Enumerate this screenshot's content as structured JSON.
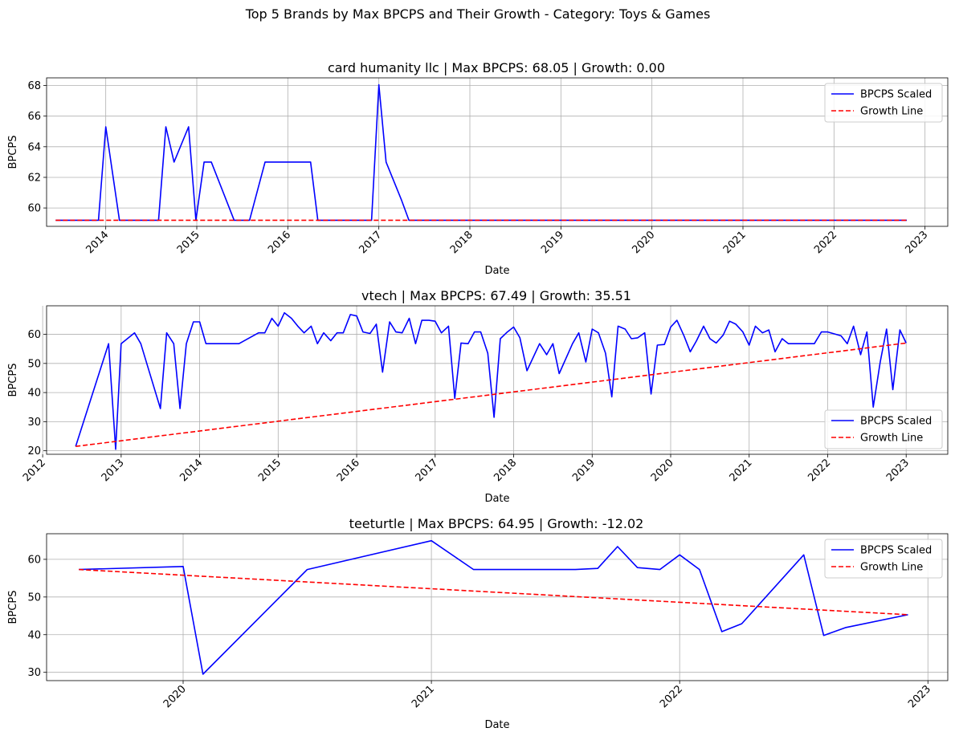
{
  "figure": {
    "title": "Top 5 Brands by Max BPCPS and Their Growth - Category: Toys & Games"
  },
  "colors": {
    "bpcps": "#0000ff",
    "growth": "#ff0000",
    "grid": "#b0b0b0"
  },
  "chart_data": [
    {
      "type": "line",
      "title": "card humanity llc | Max BPCPS: 68.05 | Growth: 0.00",
      "xlabel": "Date",
      "ylabel": "BPCPS",
      "xlim": [
        2013.35,
        2023.25
      ],
      "ylim": [
        58.8,
        68.5
      ],
      "xticks": [
        2014,
        2015,
        2016,
        2017,
        2018,
        2019,
        2020,
        2021,
        2022,
        2023
      ],
      "xtick_labels": [
        "2014",
        "2015",
        "2016",
        "2017",
        "2018",
        "2019",
        "2020",
        "2021",
        "2022",
        "2023"
      ],
      "yticks": [
        60,
        62,
        64,
        66,
        68
      ],
      "ytick_labels": [
        "60",
        "62",
        "64",
        "66",
        "68"
      ],
      "legend": "top-right",
      "series": [
        {
          "name": "BPCPS Scaled",
          "style": "solid",
          "x": [
            2013.45,
            2013.92,
            2014.0,
            2014.15,
            2014.58,
            2014.66,
            2014.75,
            2014.91,
            2014.99,
            2015.08,
            2015.16,
            2015.41,
            2015.58,
            2015.75,
            2016.25,
            2016.33,
            2016.92,
            2017.0,
            2017.08,
            2017.25,
            2017.33,
            2022.8
          ],
          "y": [
            59.2,
            59.2,
            65.3,
            59.2,
            59.2,
            65.3,
            63.0,
            65.3,
            59.2,
            63.0,
            63.0,
            59.2,
            59.2,
            63.0,
            63.0,
            59.2,
            59.2,
            68.05,
            63.0,
            60.5,
            59.2,
            59.2
          ]
        },
        {
          "name": "Growth Line",
          "style": "dashed",
          "x": [
            2013.45,
            2022.8
          ],
          "y": [
            59.2,
            59.2
          ]
        }
      ]
    },
    {
      "type": "line",
      "title": "vtech | Max BPCPS: 67.49 | Growth: 35.51",
      "xlabel": "Date",
      "ylabel": "BPCPS",
      "xlim": [
        2012.05,
        2023.53
      ],
      "ylim": [
        18.8,
        69.8
      ],
      "xticks": [
        2012,
        2013,
        2014,
        2015,
        2016,
        2017,
        2018,
        2019,
        2020,
        2021,
        2022,
        2023
      ],
      "xtick_labels": [
        "2012",
        "2013",
        "2014",
        "2015",
        "2016",
        "2017",
        "2018",
        "2019",
        "2020",
        "2021",
        "2022",
        "2023"
      ],
      "yticks": [
        20,
        30,
        40,
        50,
        60
      ],
      "ytick_labels": [
        "20",
        "30",
        "40",
        "50",
        "60"
      ],
      "legend": "lower-right",
      "series": [
        {
          "name": "BPCPS Scaled",
          "style": "solid",
          "x": [
            2012.42,
            2012.84,
            2012.93,
            2013.0,
            2013.17,
            2013.25,
            2013.5,
            2013.58,
            2013.67,
            2013.75,
            2013.83,
            2013.92,
            2014.0,
            2014.08,
            2014.42,
            2014.5,
            2014.75,
            2014.83,
            2014.92,
            2015.0,
            2015.08,
            2015.17,
            2015.25,
            2015.33,
            2015.42,
            2015.5,
            2015.58,
            2015.67,
            2015.75,
            2015.83,
            2015.92,
            2016.0,
            2016.08,
            2016.17,
            2016.25,
            2016.33,
            2016.42,
            2016.5,
            2016.58,
            2016.67,
            2016.75,
            2016.83,
            2016.92,
            2017.0,
            2017.08,
            2017.17,
            2017.25,
            2017.33,
            2017.42,
            2017.5,
            2017.58,
            2017.67,
            2017.75,
            2017.83,
            2017.92,
            2018.0,
            2018.08,
            2018.17,
            2018.33,
            2018.42,
            2018.5,
            2018.58,
            2018.75,
            2018.83,
            2018.92,
            2019.0,
            2019.08,
            2019.17,
            2019.25,
            2019.33,
            2019.42,
            2019.5,
            2019.58,
            2019.67,
            2019.75,
            2019.83,
            2019.92,
            2020.0,
            2020.08,
            2020.17,
            2020.25,
            2020.33,
            2020.42,
            2020.5,
            2020.58,
            2020.67,
            2020.75,
            2020.83,
            2020.92,
            2021.0,
            2021.08,
            2021.17,
            2021.25,
            2021.33,
            2021.42,
            2021.5,
            2021.83,
            2021.92,
            2022.0,
            2022.17,
            2022.25,
            2022.33,
            2022.42,
            2022.5,
            2022.58,
            2022.67,
            2022.75,
            2022.83,
            2022.92,
            2023.0
          ],
          "y": [
            21.5,
            56.8,
            20.5,
            56.8,
            60.5,
            56.8,
            34.5,
            60.5,
            56.8,
            34.5,
            56.8,
            64.3,
            64.3,
            56.8,
            56.8,
            56.8,
            60.5,
            60.5,
            65.5,
            62.8,
            67.4,
            65.5,
            62.8,
            60.5,
            62.8,
            56.8,
            60.5,
            57.8,
            60.5,
            60.5,
            66.8,
            66.3,
            60.8,
            60.3,
            63.5,
            47.0,
            64.3,
            60.8,
            60.5,
            65.5,
            56.8,
            64.8,
            64.8,
            64.5,
            60.5,
            62.8,
            38.0,
            57.0,
            56.8,
            60.8,
            60.8,
            53.5,
            31.5,
            58.5,
            60.8,
            62.5,
            58.8,
            47.5,
            56.8,
            53.0,
            56.8,
            46.5,
            56.8,
            60.5,
            50.5,
            61.8,
            60.5,
            53.5,
            38.5,
            62.8,
            61.8,
            58.5,
            58.8,
            60.5,
            39.5,
            56.3,
            56.5,
            62.5,
            64.8,
            59.5,
            54.0,
            57.8,
            62.8,
            58.5,
            57.0,
            59.8,
            64.5,
            63.5,
            60.8,
            56.3,
            62.8,
            60.5,
            61.5,
            54.0,
            58.5,
            56.8,
            56.8,
            60.8,
            60.8,
            59.5,
            56.8,
            62.8,
            53.0,
            60.8,
            35.0,
            50.5,
            61.8,
            41.0,
            61.5,
            57.0
          ]
        },
        {
          "name": "Growth Line",
          "style": "dashed",
          "x": [
            2012.42,
            2023.0
          ],
          "y": [
            21.5,
            57.0
          ]
        }
      ]
    },
    {
      "type": "line",
      "title": "teeturtle | Max BPCPS: 64.95 | Growth: -12.02",
      "xlabel": "Date",
      "ylabel": "BPCPS",
      "xlim": [
        2019.45,
        2023.08
      ],
      "ylim": [
        27.8,
        66.8
      ],
      "xticks": [
        2020,
        2021,
        2022,
        2023
      ],
      "xtick_labels": [
        "2020",
        "2021",
        "2022",
        "2023"
      ],
      "yticks": [
        30,
        40,
        50,
        60
      ],
      "ytick_labels": [
        "30",
        "40",
        "50",
        "60"
      ],
      "legend": "top-right",
      "series": [
        {
          "name": "BPCPS Scaled",
          "style": "solid",
          "x": [
            2019.58,
            2020.0,
            2020.08,
            2020.5,
            2021.0,
            2021.17,
            2021.58,
            2021.67,
            2021.75,
            2021.83,
            2021.92,
            2022.0,
            2022.08,
            2022.17,
            2022.25,
            2022.5,
            2022.58,
            2022.67,
            2022.92
          ],
          "y": [
            57.3,
            58.1,
            29.5,
            57.3,
            64.95,
            57.3,
            57.3,
            57.6,
            63.4,
            57.8,
            57.3,
            61.2,
            57.3,
            40.8,
            42.9,
            61.2,
            39.8,
            41.9,
            45.3
          ]
        },
        {
          "name": "Growth Line",
          "style": "dashed",
          "x": [
            2019.58,
            2022.92
          ],
          "y": [
            57.3,
            45.3
          ]
        }
      ]
    }
  ]
}
